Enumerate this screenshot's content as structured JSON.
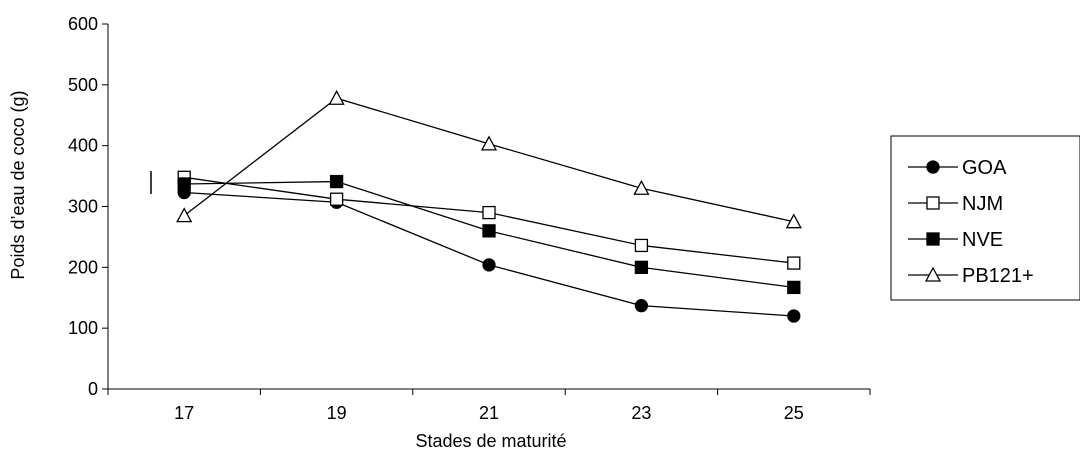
{
  "chart_data": {
    "type": "line",
    "title": "",
    "xlabel": "Stades de maturité",
    "ylabel": "Poids d’eau de coco (g)",
    "x": [
      17,
      19,
      21,
      23,
      25
    ],
    "ylim": [
      0,
      600
    ],
    "yticks": [
      0,
      100,
      200,
      300,
      400,
      500,
      600
    ],
    "grid": false,
    "legend": "right",
    "series": [
      {
        "name": "GOA",
        "marker": "filled-circle",
        "values": [
          323,
          307,
          204,
          137,
          120
        ]
      },
      {
        "name": "NJM",
        "marker": "open-square",
        "values": [
          348,
          312,
          290,
          236,
          207
        ]
      },
      {
        "name": "NVE",
        "marker": "filled-square",
        "values": [
          337,
          341,
          260,
          200,
          167
        ]
      },
      {
        "name": "PB121+",
        "marker": "open-triangle",
        "values": [
          285,
          478,
          403,
          330,
          275
        ]
      }
    ]
  }
}
